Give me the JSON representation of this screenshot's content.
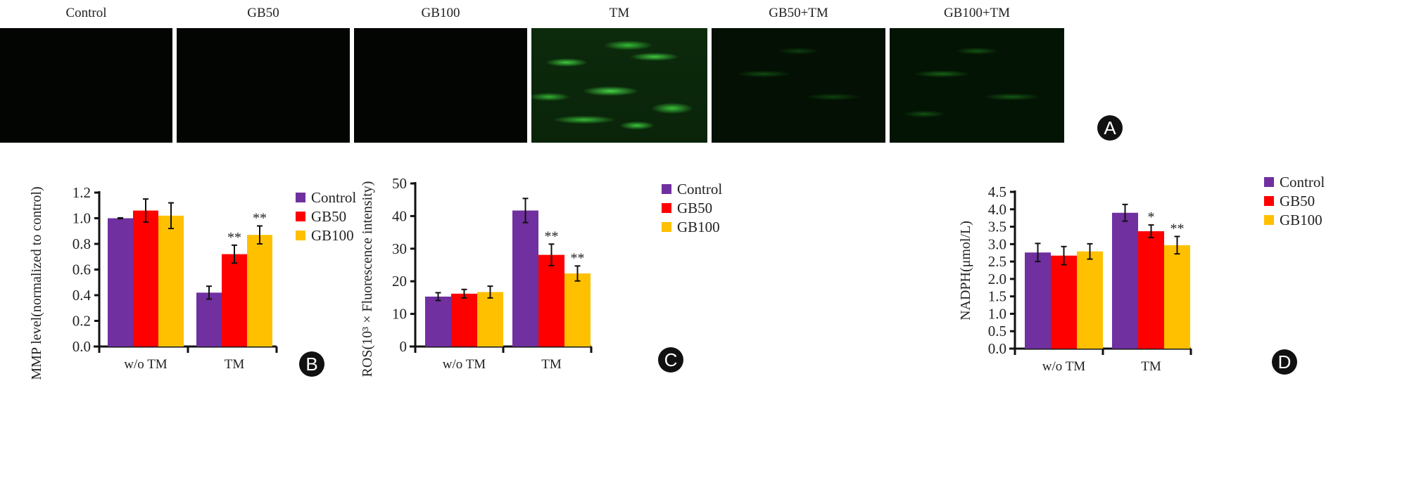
{
  "panel_a": {
    "badge": "A",
    "images": [
      {
        "label": "Control"
      },
      {
        "label": "GB50"
      },
      {
        "label": "GB100"
      },
      {
        "label": "TM"
      },
      {
        "label": "GB50+TM"
      },
      {
        "label": "GB100+TM"
      }
    ]
  },
  "colors": {
    "Control": "#7030a0",
    "GB50": "#ff0000",
    "GB100": "#ffc000"
  },
  "chart_data": [
    {
      "type": "bar",
      "badge": "B",
      "ylabel": "MMP level(normalized to control)",
      "categories": [
        "w/o TM",
        "TM"
      ],
      "ylim": [
        0,
        1.2
      ],
      "yticks": [
        "0.0",
        "0.2",
        "0.4",
        "0.6",
        "0.8",
        "1.0",
        "1.2"
      ],
      "ystep": 0.2,
      "series": [
        {
          "name": "Control",
          "values": [
            1.0,
            0.42
          ],
          "errors": [
            0.003,
            0.05
          ],
          "sig": [
            "",
            ""
          ]
        },
        {
          "name": "GB50",
          "values": [
            1.06,
            0.72
          ],
          "errors": [
            0.09,
            0.07
          ],
          "sig": [
            "",
            "**"
          ]
        },
        {
          "name": "GB100",
          "values": [
            1.02,
            0.87
          ],
          "errors": [
            0.1,
            0.07
          ],
          "sig": [
            "",
            "**"
          ]
        }
      ],
      "legend": "top-right"
    },
    {
      "type": "bar",
      "badge": "C",
      "ylabel": "ROS(10³ × Fluorescence intensity)",
      "categories": [
        "w/o TM",
        "TM"
      ],
      "ylim": [
        0,
        50
      ],
      "yticks": [
        "0",
        "10",
        "20",
        "30",
        "40",
        "50"
      ],
      "ystep": 10,
      "series": [
        {
          "name": "Control",
          "values": [
            15.3,
            41.7
          ],
          "errors": [
            1.2,
            3.7
          ],
          "sig": [
            "",
            ""
          ]
        },
        {
          "name": "GB50",
          "values": [
            16.2,
            28.1
          ],
          "errors": [
            1.3,
            3.3
          ],
          "sig": [
            "",
            "**"
          ]
        },
        {
          "name": "GB100",
          "values": [
            16.7,
            22.4
          ],
          "errors": [
            1.8,
            2.3
          ],
          "sig": [
            "",
            "**"
          ]
        }
      ],
      "legend": "top-right"
    },
    {
      "type": "bar",
      "badge": "D",
      "ylabel": "NADPH(μmol/L)",
      "categories": [
        "w/o TM",
        "TM"
      ],
      "ylim": [
        0,
        4.5
      ],
      "yticks": [
        "0.0",
        "0.5",
        "1.0",
        "1.5",
        "2.0",
        "2.5",
        "3.0",
        "3.5",
        "4.0",
        "4.5"
      ],
      "ystep": 0.5,
      "series": [
        {
          "name": "Control",
          "values": [
            2.76,
            3.9
          ],
          "errors": [
            0.26,
            0.24
          ],
          "sig": [
            "",
            ""
          ]
        },
        {
          "name": "GB50",
          "values": [
            2.67,
            3.37
          ],
          "errors": [
            0.26,
            0.18
          ],
          "sig": [
            "",
            "*"
          ]
        },
        {
          "name": "GB100",
          "values": [
            2.79,
            2.97
          ],
          "errors": [
            0.22,
            0.25
          ],
          "sig": [
            "",
            "**"
          ]
        }
      ],
      "legend": "top-right"
    }
  ]
}
